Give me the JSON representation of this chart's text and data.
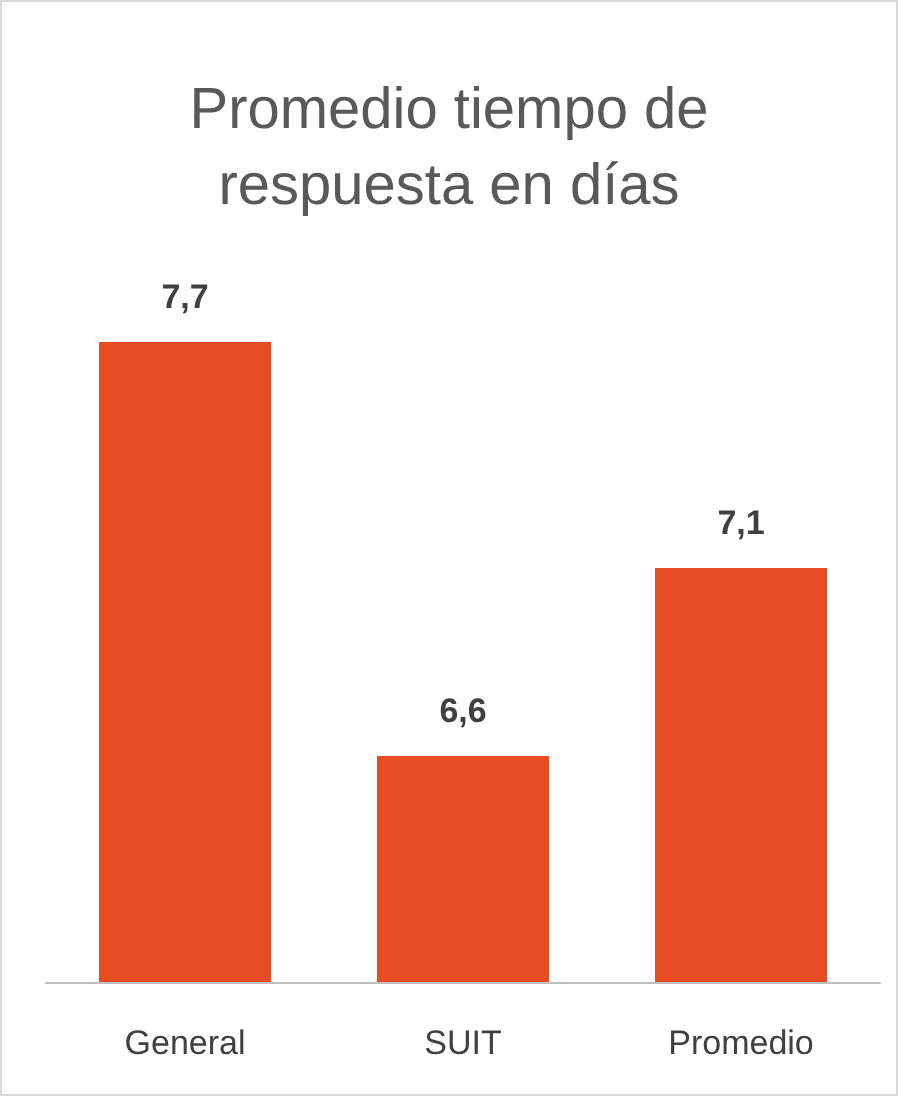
{
  "chart_data": {
    "type": "bar",
    "title": "Promedio tiempo de\nrespuesta en días",
    "categories": [
      "General",
      "SUIT",
      "Promedio"
    ],
    "values": [
      7.7,
      6.6,
      7.1
    ],
    "color": "#e84c22",
    "value_labels": [
      "7,7",
      "6,6",
      "7,1"
    ],
    "ylim": [
      6,
      7.7
    ],
    "tick_labels": "x"
  }
}
